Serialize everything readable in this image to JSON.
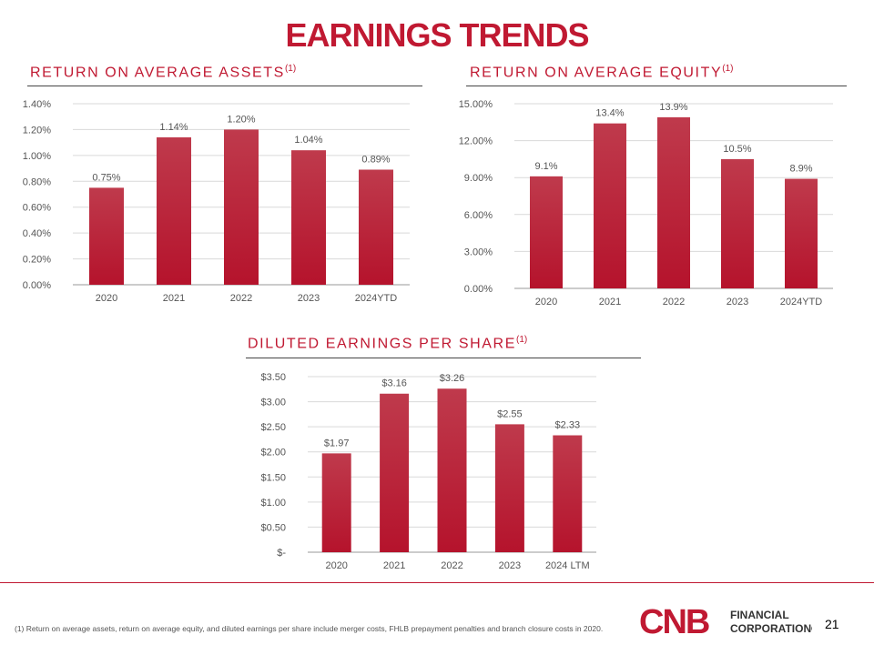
{
  "page": {
    "title": "EARNINGS TRENDS",
    "footnote": "(1) Return on average assets, return on average equity, and diluted earnings per share include merger costs, FHLB prepayment penalties and branch closure costs in 2020.",
    "page_number": "21",
    "bar_color": "#b5132c",
    "accent_color": "#c01932"
  },
  "logo": {
    "mark": "CNB",
    "line1": "FINANCIAL",
    "line2": "CORPORATION®"
  },
  "chart_data": [
    {
      "type": "bar",
      "title": "RETURN ON AVERAGE ASSETS",
      "title_sup": "(1)",
      "categories": [
        "2020",
        "2021",
        "2022",
        "2023",
        "2024YTD"
      ],
      "values": [
        0.75,
        1.14,
        1.2,
        1.04,
        0.89
      ],
      "data_labels": [
        "0.75%",
        "1.14%",
        "1.20%",
        "1.04%",
        "0.89%"
      ],
      "yticks": [
        0,
        0.2,
        0.4,
        0.6,
        0.8,
        1.0,
        1.2,
        1.4
      ],
      "ytick_labels": [
        "0.00%",
        "0.20%",
        "0.40%",
        "0.60%",
        "0.80%",
        "1.00%",
        "1.20%",
        "1.40%"
      ],
      "ylim": [
        0,
        1.4
      ],
      "grid": true
    },
    {
      "type": "bar",
      "title": "RETURN ON AVERAGE EQUITY",
      "title_sup": "(1)",
      "categories": [
        "2020",
        "2021",
        "2022",
        "2023",
        "2024YTD"
      ],
      "values": [
        9.1,
        13.4,
        13.9,
        10.5,
        8.9
      ],
      "data_labels": [
        "9.1%",
        "13.4%",
        "13.9%",
        "10.5%",
        "8.9%"
      ],
      "yticks": [
        0,
        3,
        6,
        9,
        12,
        15
      ],
      "ytick_labels": [
        "0.00%",
        "3.00%",
        "6.00%",
        "9.00%",
        "12.00%",
        "15.00%"
      ],
      "ylim": [
        0,
        15
      ],
      "grid": true
    },
    {
      "type": "bar",
      "title": "DILUTED EARNINGS PER SHARE",
      "title_sup": "(1)",
      "categories": [
        "2020",
        "2021",
        "2022",
        "2023",
        "2024 LTM"
      ],
      "values": [
        1.97,
        3.16,
        3.26,
        2.55,
        2.33
      ],
      "data_labels": [
        "$1.97",
        "$3.16",
        "$3.26",
        "$2.55",
        "$2.33"
      ],
      "yticks": [
        0,
        0.5,
        1.0,
        1.5,
        2.0,
        2.5,
        3.0,
        3.5
      ],
      "ytick_labels": [
        "$-",
        "$0.50",
        "$1.00",
        "$1.50",
        "$2.00",
        "$2.50",
        "$3.00",
        "$3.50"
      ],
      "ylim": [
        0,
        3.5
      ],
      "grid": true
    }
  ]
}
